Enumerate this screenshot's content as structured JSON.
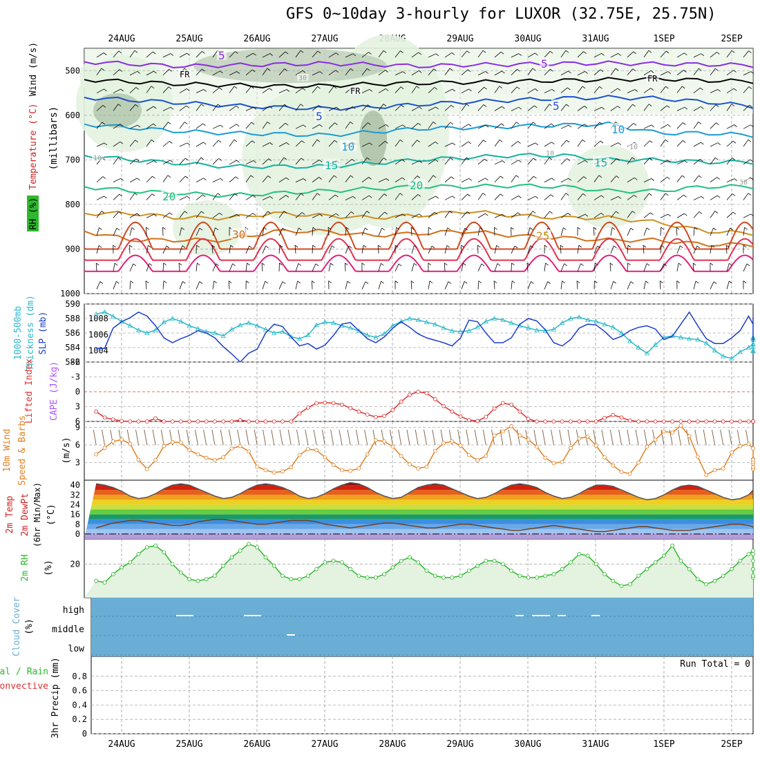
{
  "title": "GFS 0~10day 3-hourly for LUXOR (32.75E, 25.75N)",
  "colors": {
    "rh": "#2db82d",
    "temp": "#cc2222",
    "wind": "#000000",
    "thickness": "#2ab8c8",
    "slp": "#1a3ccc",
    "lifted": "#dd3333",
    "cape": "#aa55ff",
    "wind10": "#e08020",
    "cloud": "#6aaed6",
    "precip_total": "#2db82d",
    "precip_conv": "#dd3333"
  },
  "dates": [
    "24AUG",
    "25AUG",
    "26AUG",
    "27AUG",
    "28AUG",
    "29AUG",
    "30AUG",
    "31AUG",
    "1SEP",
    "2SEP"
  ],
  "chart_data": [
    {
      "type": "heatmap",
      "name": "upper-air",
      "ylabel_parts": [
        "RH (%)",
        "Temperature (°C)",
        "Wind (m/s)"
      ],
      "yunit": "(millibars)",
      "yticks": [
        500,
        600,
        700,
        800,
        900,
        1000
      ],
      "ylim": [
        1000,
        450
      ],
      "contour_labels": [
        "5",
        "FR",
        "FR",
        "FR",
        "5",
        "5",
        "5",
        "10",
        "10",
        "10",
        "10",
        "15",
        "15",
        "20",
        "20",
        "25",
        "30",
        "30",
        "30",
        "10"
      ],
      "isotherms": [
        {
          "label": "-5",
          "color": "#8a2be2",
          "p": [
            480,
            485,
            490,
            488,
            486,
            484,
            486,
            490,
            487,
            486,
            484,
            483,
            485,
            486,
            488
          ]
        },
        {
          "label": "FR",
          "color": "#000000",
          "p": [
            520,
            525,
            530,
            532,
            535,
            534,
            530,
            528,
            526,
            524,
            522,
            520,
            518,
            522,
            524
          ]
        },
        {
          "label": "-5",
          "color": "#1a50cc",
          "p": [
            560,
            566,
            572,
            578,
            582,
            585,
            582,
            576,
            570,
            566,
            562,
            560,
            562,
            570,
            580
          ]
        },
        {
          "label": "10",
          "color": "#1a9ad6",
          "p": [
            620,
            628,
            636,
            640,
            642,
            645,
            638,
            630,
            628,
            625,
            622,
            620,
            640,
            640,
            645
          ]
        },
        {
          "label": "15",
          "color": "#14b0a0",
          "p": [
            690,
            700,
            708,
            715,
            715,
            715,
            708,
            700,
            695,
            690,
            690,
            700,
            700,
            705,
            705
          ]
        },
        {
          "label": "20",
          "color": "#20c080",
          "p": [
            760,
            770,
            775,
            780,
            775,
            770,
            765,
            760,
            760,
            758,
            760,
            770,
            770,
            760,
            760
          ]
        },
        {
          "label": "25",
          "color": "#cc9020",
          "p": [
            820,
            820,
            830,
            830,
            820,
            825,
            830,
            825,
            815,
            825,
            830,
            830,
            840,
            860,
            865
          ]
        },
        {
          "label": "30",
          "color": "#d07018",
          "p": [
            860,
            880,
            880,
            880,
            860,
            860,
            870,
            865,
            860,
            870,
            875,
            880,
            880,
            890,
            890
          ]
        }
      ]
    },
    {
      "type": "line",
      "name": "thickness-slp",
      "ylabel_left": "1000-500mb Thickness (dm)",
      "ylabel_right": "SLP (mb)",
      "yticks_left": [
        582,
        584,
        586,
        588,
        590
      ],
      "yticks_right": [
        1004,
        1006,
        1008
      ],
      "series": [
        {
          "name": "1000-500mb Thickness (dm)",
          "axis": "left",
          "values": [
            588.6,
            588.9,
            588.3,
            587.6,
            587.0,
            586.4,
            586.0,
            586.4,
            587.5,
            588.0,
            587.6,
            587.0,
            586.6,
            586.2,
            586.0,
            585.6,
            586.5,
            587.1,
            587.4,
            587.0,
            586.5,
            586.0,
            586.2,
            585.5,
            585.2,
            585.7,
            587.1,
            587.5,
            587.4,
            587.0,
            586.7,
            586.3,
            585.7,
            585.4,
            585.9,
            587.0,
            587.6,
            588.0,
            587.8,
            587.5,
            587.2,
            586.7,
            586.3,
            586.2,
            586.3,
            586.8,
            587.6,
            588.0,
            587.8,
            587.4,
            587.0,
            586.7,
            586.4,
            586.3,
            586.5,
            587.4,
            588.0,
            588.2,
            587.8,
            587.6,
            587.2,
            586.8,
            586.0,
            584.9,
            584.0,
            583.2,
            584.4,
            585.4,
            585.6,
            585.4,
            585.2,
            585.1,
            584.6,
            583.6,
            582.8,
            582.5,
            583.4,
            584.0,
            584.5,
            585.3,
            585.4,
            585.1,
            584.5,
            584.1,
            583.6,
            583.5
          ]
        },
        {
          "name": "SLP (mb)",
          "axis": "right",
          "values": [
            1004.3,
            1004.3,
            1006.8,
            1007.6,
            1008.1,
            1008.8,
            1008.3,
            1007.1,
            1005.6,
            1005.0,
            1005.5,
            1005.9,
            1006.5,
            1006.2,
            1005.6,
            1004.5,
            1003.6,
            1002.6,
            1003.7,
            1004.2,
            1006.2,
            1007.3,
            1007.0,
            1005.7,
            1004.6,
            1004.9,
            1004.2,
            1004.7,
            1005.9,
            1007.3,
            1007.5,
            1006.5,
            1005.5,
            1005.0,
            1005.7,
            1006.8,
            1007.6,
            1006.9,
            1006.1,
            1005.6,
            1005.3,
            1005.0,
            1004.6,
            1005.6,
            1007.8,
            1007.6,
            1006.2,
            1005.0,
            1005.0,
            1005.6,
            1007.3,
            1008.0,
            1007.7,
            1006.6,
            1005.0,
            1004.6,
            1005.4,
            1006.8,
            1007.3,
            1007.2,
            1006.4,
            1005.4,
            1005.8,
            1006.5,
            1006.9,
            1007.1,
            1006.7,
            1005.4,
            1005.8,
            1007.3,
            1008.8,
            1007.1,
            1005.5,
            1004.9,
            1004.9,
            1005.6,
            1006.5,
            1008.3,
            1007.3,
            1006.4,
            1005.1,
            1005.5,
            1006.5,
            1006.9,
            1007.5,
            1008.1
          ]
        }
      ]
    },
    {
      "type": "line",
      "name": "lifted-cape",
      "ylabel": "Lifted Index",
      "ylabel2": "CAPE (J/kg)",
      "yticks": [
        -6,
        -3,
        0,
        3,
        6
      ],
      "ylim": [
        6,
        -6
      ],
      "series": [
        {
          "name": "Lifted Index",
          "values": [
            4.0,
            5.2,
            5.6,
            5.9,
            6.0,
            6.0,
            6.0,
            5.4,
            6.0,
            6.0,
            6.0,
            6.0,
            6.0,
            6.0,
            6.0,
            6.0,
            6.0,
            5.7,
            6.0,
            6.0,
            6.0,
            6.0,
            6.0,
            6.0,
            4.4,
            3.2,
            2.3,
            2.2,
            2.3,
            2.6,
            3.3,
            4.0,
            4.6,
            5.1,
            4.9,
            3.7,
            2.0,
            0.6,
            0.0,
            0.3,
            1.5,
            2.9,
            4.0,
            5.0,
            5.7,
            5.9,
            5.1,
            3.4,
            2.3,
            2.6,
            4.0,
            5.5,
            6.0,
            6.0,
            6.0,
            6.0,
            6.0,
            6.0,
            6.0,
            6.0,
            5.3,
            4.7,
            5.2,
            5.8,
            6.0,
            6.0,
            6.0,
            6.0,
            6.0,
            6.0,
            6.0,
            6.0,
            6.0,
            6.0,
            6.0,
            6.0,
            6.0,
            6.0,
            6.0,
            6.0,
            6.0,
            6.0,
            6.0,
            6.0,
            6.0,
            6.0
          ]
        }
      ]
    },
    {
      "type": "line",
      "name": "wind10m",
      "ylabel": "10m Wind Speed & Barbs",
      "yunit": "(m/s)",
      "yticks": [
        3,
        6,
        9
      ],
      "ylim": [
        0,
        10
      ],
      "series": [
        {
          "name": "10m Wind Speed",
          "values": [
            4.4,
            5.5,
            6.6,
            6.9,
            6.2,
            3.5,
            1.9,
            3.4,
            5.8,
            6.5,
            6.4,
            5.1,
            4.4,
            3.8,
            3.4,
            3.9,
            5.4,
            5.8,
            4.9,
            2.3,
            1.7,
            1.3,
            1.5,
            2.2,
            4.3,
            5.3,
            5.1,
            3.9,
            2.6,
            1.7,
            1.6,
            2.0,
            4.4,
            6.8,
            6.6,
            5.7,
            4.1,
            2.7,
            2.0,
            2.3,
            5.0,
            6.3,
            6.6,
            5.9,
            4.3,
            3.4,
            4.1,
            7.6,
            8.3,
            9.2,
            7.6,
            6.9,
            5.7,
            3.8,
            2.9,
            3.1,
            5.5,
            7.1,
            7.4,
            5.9,
            3.9,
            2.5,
            1.4,
            1.1,
            3.0,
            5.7,
            6.9,
            8.3,
            8.1,
            9.3,
            7.5,
            4.0,
            0.9,
            1.7,
            2.0,
            4.7,
            5.8,
            6.2,
            5.4,
            3.6,
            2.1,
            1.9,
            2.2,
            2.8,
            3.1,
            3.5
          ]
        }
      ]
    },
    {
      "type": "area",
      "name": "temp2m",
      "ylabel": "2m Temp",
      "ylabel2": "2m DewPt",
      "ylabel3": "(6hr Min/Max)",
      "yunit": "(°C)",
      "yticks": [
        0,
        8,
        16,
        24,
        32,
        40
      ],
      "ylim": [
        -4,
        44
      ],
      "series": [
        {
          "name": "2m Temp",
          "values": [
            41,
            40,
            38,
            35,
            31,
            29,
            30,
            33,
            37,
            40,
            41,
            40,
            37,
            34,
            31,
            29,
            30,
            33,
            37,
            40,
            41,
            40,
            38,
            35,
            31,
            29,
            30,
            33,
            37,
            40,
            42,
            41,
            38,
            34,
            31,
            29,
            30,
            34,
            38,
            40,
            41,
            40,
            37,
            34,
            31,
            29,
            30,
            33,
            37,
            40,
            41,
            40,
            38,
            34,
            31,
            29,
            30,
            33,
            37,
            40,
            40,
            39,
            36,
            33,
            30,
            28,
            29,
            32,
            36,
            39,
            40,
            39,
            36,
            33,
            30,
            28,
            29,
            32,
            36,
            39,
            40,
            39,
            36,
            32,
            29,
            31
          ]
        },
        {
          "name": "2m DewPt",
          "values": [
            5,
            7,
            9,
            10,
            11,
            11,
            10,
            9,
            8,
            7,
            7,
            8,
            10,
            11,
            12,
            12,
            11,
            10,
            9,
            8,
            8,
            9,
            10,
            11,
            11,
            11,
            10,
            8,
            7,
            6,
            5,
            6,
            7,
            8,
            9,
            9,
            8,
            7,
            6,
            5,
            5,
            6,
            7,
            8,
            8,
            7,
            6,
            5,
            4,
            3,
            3,
            4,
            5,
            6,
            7,
            6,
            5,
            4,
            3,
            2,
            2,
            3,
            4,
            5,
            6,
            6,
            5,
            4,
            3,
            3,
            3,
            4,
            5,
            6,
            7,
            8,
            8,
            7,
            6,
            5,
            5,
            5,
            6,
            6,
            6,
            6
          ]
        }
      ]
    },
    {
      "type": "area",
      "name": "rh2m",
      "ylabel": "2m RH",
      "yunit": "(%)",
      "yticks": [
        20
      ],
      "ylim": [
        0,
        35
      ],
      "series": [
        {
          "name": "2m RH",
          "values": [
            10,
            9,
            14,
            18,
            21,
            26,
            30,
            31,
            27,
            20,
            15,
            11,
            10,
            11,
            13,
            19,
            24,
            28,
            32,
            30,
            24,
            19,
            13,
            11,
            11,
            13,
            17,
            21,
            22,
            21,
            17,
            13,
            12,
            12,
            14,
            18,
            22,
            24,
            21,
            16,
            13,
            12,
            12,
            13,
            16,
            19,
            22,
            22,
            20,
            16,
            13,
            12,
            12,
            13,
            14,
            17,
            21,
            26,
            25,
            20,
            14,
            10,
            7,
            8,
            13,
            17,
            21,
            25,
            31,
            22,
            17,
            11,
            8,
            10,
            13,
            17,
            22,
            26,
            28,
            26,
            22,
            17,
            13,
            12,
            13,
            17
          ]
        }
      ]
    },
    {
      "type": "heatmap",
      "name": "cloud-cover",
      "ylabel": "Cloud Cover",
      "yunit": "(%)",
      "levels": [
        "high",
        "middle",
        "low"
      ]
    },
    {
      "type": "bar",
      "name": "precip",
      "ylabel": "3hr Precip (mm)",
      "legend": [
        "Total / Rain",
        "Convective"
      ],
      "run_total": "Run Total = 0",
      "yticks": [
        0,
        0.2,
        0.4,
        0.6,
        0.8
      ],
      "ylim": [
        0,
        1
      ],
      "values": []
    }
  ]
}
